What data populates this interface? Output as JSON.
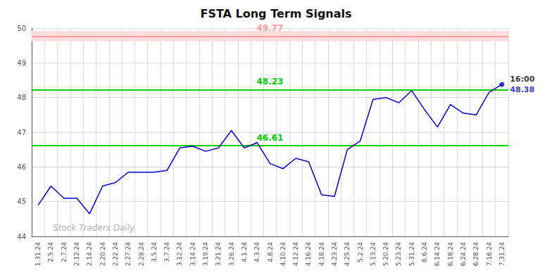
{
  "chart_data": {
    "type": "line",
    "title": "FSTA Long Term Signals",
    "categories": [
      "1.31.24",
      "2.5.24",
      "2.7.24",
      "2.12.24",
      "2.14.24",
      "2.20.24",
      "2.22.24",
      "2.27.24",
      "2.29.24",
      "3.5.24",
      "3.7.24",
      "3.12.24",
      "3.14.24",
      "3.19.24",
      "3.21.24",
      "3.26.24",
      "4.1.24",
      "4.3.24",
      "4.8.24",
      "4.10.24",
      "4.12.24",
      "4.16.24",
      "4.18.24",
      "4.23.24",
      "4.25.24",
      "5.2.24",
      "5.13.24",
      "5.20.24",
      "5.23.24",
      "5.31.24",
      "6.6.24",
      "6.14.24",
      "6.18.24",
      "6.24.24",
      "6.28.24",
      "7.16.24",
      "7.31.24"
    ],
    "values": [
      44.9,
      45.45,
      45.1,
      45.1,
      44.65,
      45.45,
      45.55,
      45.85,
      45.85,
      45.85,
      45.9,
      46.55,
      46.6,
      46.45,
      46.55,
      47.05,
      46.55,
      46.7,
      46.1,
      45.95,
      46.25,
      46.15,
      45.2,
      45.15,
      46.5,
      46.75,
      47.95,
      48.0,
      47.85,
      48.2,
      47.65,
      47.15,
      47.8,
      47.55,
      47.5,
      48.15,
      48.38
    ],
    "color": "#0000cc",
    "hlines": [
      {
        "value": 49.77,
        "color": "#ff9999"
      },
      {
        "value": 48.23,
        "color": "#00cc00"
      },
      {
        "value": 46.61,
        "color": "#00cc00"
      }
    ],
    "bands": [
      {
        "from": 49.62,
        "to": 49.92,
        "color": "#ffdddd"
      }
    ],
    "annotations": [
      "16:00",
      "48.38"
    ],
    "watermark": "Stock Traders Daily",
    "ylim": [
      44,
      50
    ],
    "yticks": [
      44,
      45,
      46,
      47,
      48,
      49,
      50
    ],
    "grid": true
  }
}
